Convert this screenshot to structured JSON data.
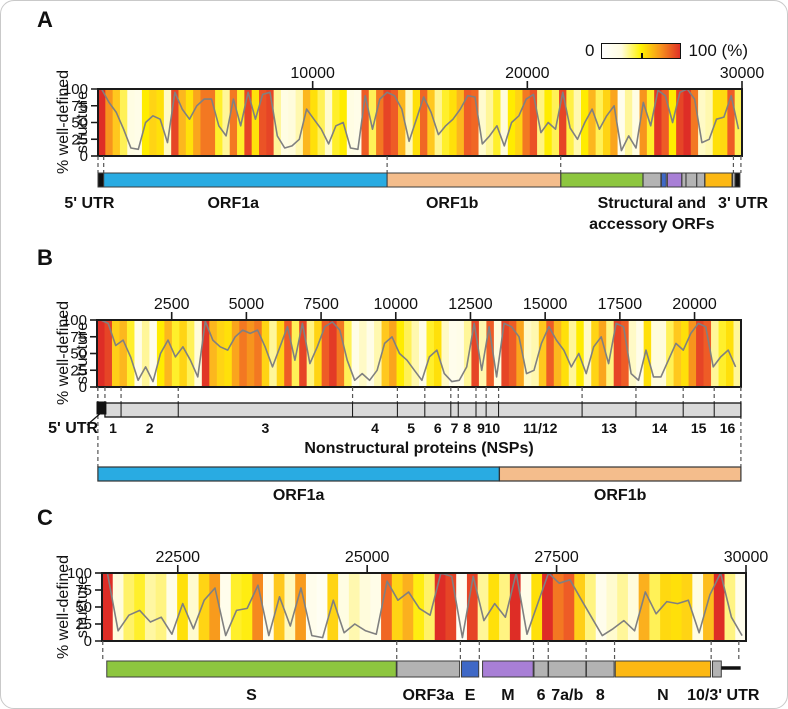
{
  "panels": {
    "a": "A",
    "b": "B",
    "c": "C"
  },
  "y_axis": {
    "line1": "% well-defined",
    "line2": "structure",
    "ticks": [
      100,
      75,
      50,
      25,
      0
    ]
  },
  "colorbar": {
    "min_label": "0",
    "max_label": "100 (%)",
    "gradient": [
      "#ffffff",
      "#fffce0",
      "#fff200",
      "#f7941d",
      "#e03127"
    ]
  },
  "colors": {
    "line": "#808080",
    "orf1a_blue": "#29abe2",
    "orf1b_tan": "#f4bd8c",
    "s_green": "#8dc63f",
    "accessory_gray": "#b3b3b3",
    "e_blue": "#3f68c6",
    "m_purple": "#a87fd6",
    "n_yellow": "#fcb814",
    "utr_black": "#111111",
    "nsp_gray": "#d9d9d9",
    "dash": "#555555"
  },
  "chart_data": [
    {
      "panel": "A",
      "type": "line",
      "background": "heatmap-columns",
      "ylabel": "% well-defined structure",
      "ylim": [
        0,
        100
      ],
      "xlim": [
        0,
        30000
      ],
      "x_ticks": [
        10000,
        20000,
        30000
      ],
      "y_ticks": [
        100,
        75,
        50,
        25,
        0
      ],
      "x_start": 170,
      "x_step": 341,
      "values": [
        100,
        80,
        65,
        40,
        12,
        10,
        50,
        60,
        55,
        20,
        95,
        70,
        55,
        75,
        85,
        85,
        45,
        30,
        85,
        45,
        95,
        55,
        92,
        95,
        30,
        12,
        15,
        25,
        70,
        55,
        40,
        18,
        45,
        50,
        12,
        10,
        90,
        40,
        85,
        95,
        90,
        70,
        22,
        55,
        88,
        65,
        32,
        45,
        55,
        70,
        90,
        88,
        18,
        30,
        45,
        15,
        50,
        60,
        85,
        92,
        35,
        50,
        40,
        95,
        42,
        25,
        50,
        70,
        40,
        60,
        75,
        8,
        30,
        12,
        80,
        45,
        98,
        90,
        50,
        95,
        100,
        85,
        20,
        25,
        55,
        58,
        90,
        40
      ],
      "genome_segments": [
        {
          "name": "5' UTR",
          "start": 0,
          "end": 265,
          "color": "#111111"
        },
        {
          "name": "ORF1a",
          "start": 266,
          "end": 13468,
          "color": "#29abe2"
        },
        {
          "name": "ORF1b",
          "start": 13469,
          "end": 21555,
          "color": "#f4bd8c"
        },
        {
          "name": "S",
          "start": 21563,
          "end": 25384,
          "color": "#8dc63f"
        },
        {
          "name": "ORF3a",
          "start": 25393,
          "end": 26220,
          "color": "#b3b3b3"
        },
        {
          "name": "E",
          "start": 26245,
          "end": 26472,
          "color": "#3f68c6"
        },
        {
          "name": "M",
          "start": 26523,
          "end": 27191,
          "color": "#a87fd6"
        },
        {
          "name": "6",
          "start": 27202,
          "end": 27387,
          "color": "#b3b3b3"
        },
        {
          "name": "7a/b",
          "start": 27394,
          "end": 27887,
          "color": "#b3b3b3"
        },
        {
          "name": "8",
          "start": 27894,
          "end": 28259,
          "color": "#b3b3b3"
        },
        {
          "name": "N",
          "start": 28274,
          "end": 29533,
          "color": "#fcb814"
        },
        {
          "name": "10",
          "start": 29558,
          "end": 29674,
          "color": "#b3b3b3"
        },
        {
          "name": "3' UTR",
          "start": 29675,
          "end": 29903,
          "color": "#111111"
        }
      ],
      "track_labels": [
        {
          "text": "5' UTR",
          "at": -400
        },
        {
          "text": "ORF1a",
          "at": 6300
        },
        {
          "text": "ORF1b",
          "at": 16500
        },
        {
          "text": "Structural and",
          "at": 25800,
          "row": 0
        },
        {
          "text": "accessory ORFs",
          "at": 25800,
          "row": 1
        },
        {
          "text": "3' UTR",
          "at": 30050
        }
      ],
      "dashes": [
        0,
        265,
        13468,
        21555,
        29600,
        29950
      ]
    },
    {
      "panel": "B",
      "type": "line",
      "background": "heatmap-columns",
      "ylabel": "% well-defined structure",
      "ylim": [
        0,
        100
      ],
      "xlim": [
        0,
        21555
      ],
      "x_ticks": [
        2500,
        5000,
        7500,
        10000,
        12500,
        15000,
        17500,
        20000
      ],
      "y_ticks": [
        100,
        75,
        50,
        25,
        0
      ],
      "x_start": 125,
      "x_step": 250,
      "values": [
        100,
        95,
        62,
        70,
        45,
        10,
        30,
        8,
        50,
        70,
        45,
        60,
        40,
        15,
        98,
        70,
        60,
        55,
        75,
        85,
        80,
        85,
        60,
        30,
        60,
        90,
        40,
        95,
        35,
        60,
        90,
        97,
        85,
        40,
        10,
        20,
        10,
        25,
        65,
        75,
        50,
        40,
        25,
        10,
        45,
        55,
        20,
        8,
        10,
        30,
        95,
        25,
        90,
        15,
        95,
        90,
        75,
        20,
        25,
        65,
        90,
        70,
        55,
        30,
        50,
        20,
        60,
        75,
        35,
        95,
        90,
        20,
        10,
        55,
        15,
        15,
        40,
        65,
        55,
        80,
        95,
        90,
        30,
        45,
        55,
        30
      ],
      "utr_box": {
        "label": "5' UTR",
        "start": 0,
        "end": 265,
        "color": "#111111",
        "label_at": -800
      },
      "caption": "Nonstructural proteins (NSPs)",
      "nsp_bar": {
        "start": 266,
        "end": 21552,
        "color": "#d9d9d9",
        "boundaries": [
          805,
          2719,
          8554,
          10054,
          10972,
          11842,
          12091,
          12685,
          13024,
          13441,
          16236,
          18039,
          19620,
          20658
        ],
        "labels": [
          {
            "text": "1",
            "at": 535
          },
          {
            "text": "2",
            "at": 1762
          },
          {
            "text": "3",
            "at": 5636
          },
          {
            "text": "4",
            "at": 9304
          },
          {
            "text": "5",
            "at": 10513
          },
          {
            "text": "6",
            "at": 11407
          },
          {
            "text": "7",
            "at": 11966
          },
          {
            "text": "8",
            "at": 12388
          },
          {
            "text": "9",
            "at": 12854
          },
          {
            "text": "10",
            "at": 13232
          },
          {
            "text": "11/12",
            "at": 14838
          },
          {
            "text": "13",
            "at": 17137
          },
          {
            "text": "14",
            "at": 18829
          },
          {
            "text": "15",
            "at": 20139
          },
          {
            "text": "16",
            "at": 21105
          }
        ]
      },
      "orf_segments": [
        {
          "name": "ORF1a",
          "start": 30,
          "end": 13468,
          "color": "#29abe2"
        },
        {
          "name": "ORF1b",
          "start": 13469,
          "end": 21552,
          "color": "#f4bd8c"
        }
      ],
      "dashes": [
        30,
        266,
        805,
        2719,
        8554,
        10054,
        10972,
        11842,
        12091,
        12685,
        13024,
        13441,
        16236,
        18039,
        19620,
        20658,
        21552
      ],
      "long_dashes": [
        30,
        21552
      ]
    },
    {
      "panel": "C",
      "type": "line",
      "background": "heatmap-columns",
      "ylabel": "% well-defined structure",
      "ylim": [
        0,
        100
      ],
      "xlim": [
        21500,
        30000
      ],
      "x_ticks": [
        22500,
        25000,
        27500,
        30000
      ],
      "y_ticks": [
        100,
        75,
        50,
        25,
        0
      ],
      "x_start": 21571,
      "x_step": 142,
      "values": [
        100,
        15,
        38,
        45,
        28,
        35,
        10,
        55,
        18,
        60,
        78,
        8,
        45,
        48,
        82,
        8,
        65,
        22,
        78,
        8,
        5,
        60,
        12,
        25,
        15,
        10,
        88,
        60,
        72,
        48,
        38,
        100,
        95,
        5,
        95,
        30,
        55,
        35,
        100,
        10,
        55,
        100,
        85,
        90,
        62,
        35,
        8,
        18,
        30,
        15,
        72,
        40,
        58,
        55,
        60,
        12,
        68,
        100,
        35,
        8
      ],
      "genome_segments": [
        {
          "name": "S",
          "start": 21563,
          "end": 25384,
          "color": "#8dc63f",
          "label": "S"
        },
        {
          "name": "ORF3a",
          "start": 25393,
          "end": 26220,
          "color": "#b3b3b3",
          "label": "ORF3a"
        },
        {
          "name": "E",
          "start": 26245,
          "end": 26472,
          "color": "#3f68c6",
          "label": "E"
        },
        {
          "name": "M",
          "start": 26523,
          "end": 27191,
          "color": "#a87fd6",
          "label": "M"
        },
        {
          "name": "6",
          "start": 27202,
          "end": 27387,
          "color": "#b3b3b3",
          "label": "6"
        },
        {
          "name": "7a/b",
          "start": 27394,
          "end": 27887,
          "color": "#b3b3b3",
          "label": "7a/b"
        },
        {
          "name": "8",
          "start": 27894,
          "end": 28259,
          "color": "#b3b3b3",
          "label": "8"
        },
        {
          "name": "N",
          "start": 28274,
          "end": 29533,
          "color": "#fcb814",
          "label": "N"
        },
        {
          "name": "ORF10",
          "start": 29558,
          "end": 29674,
          "color": "#b3b3b3",
          "label": "10/3' UTR",
          "label_at": 29700
        },
        {
          "name": "3' UTR",
          "start": 29675,
          "end": 29903,
          "color": "#111111",
          "draw": "line"
        }
      ],
      "dashes": [
        21510,
        25390,
        26230,
        26480,
        27195,
        27390,
        27890,
        28265,
        29540,
        29905
      ]
    }
  ]
}
